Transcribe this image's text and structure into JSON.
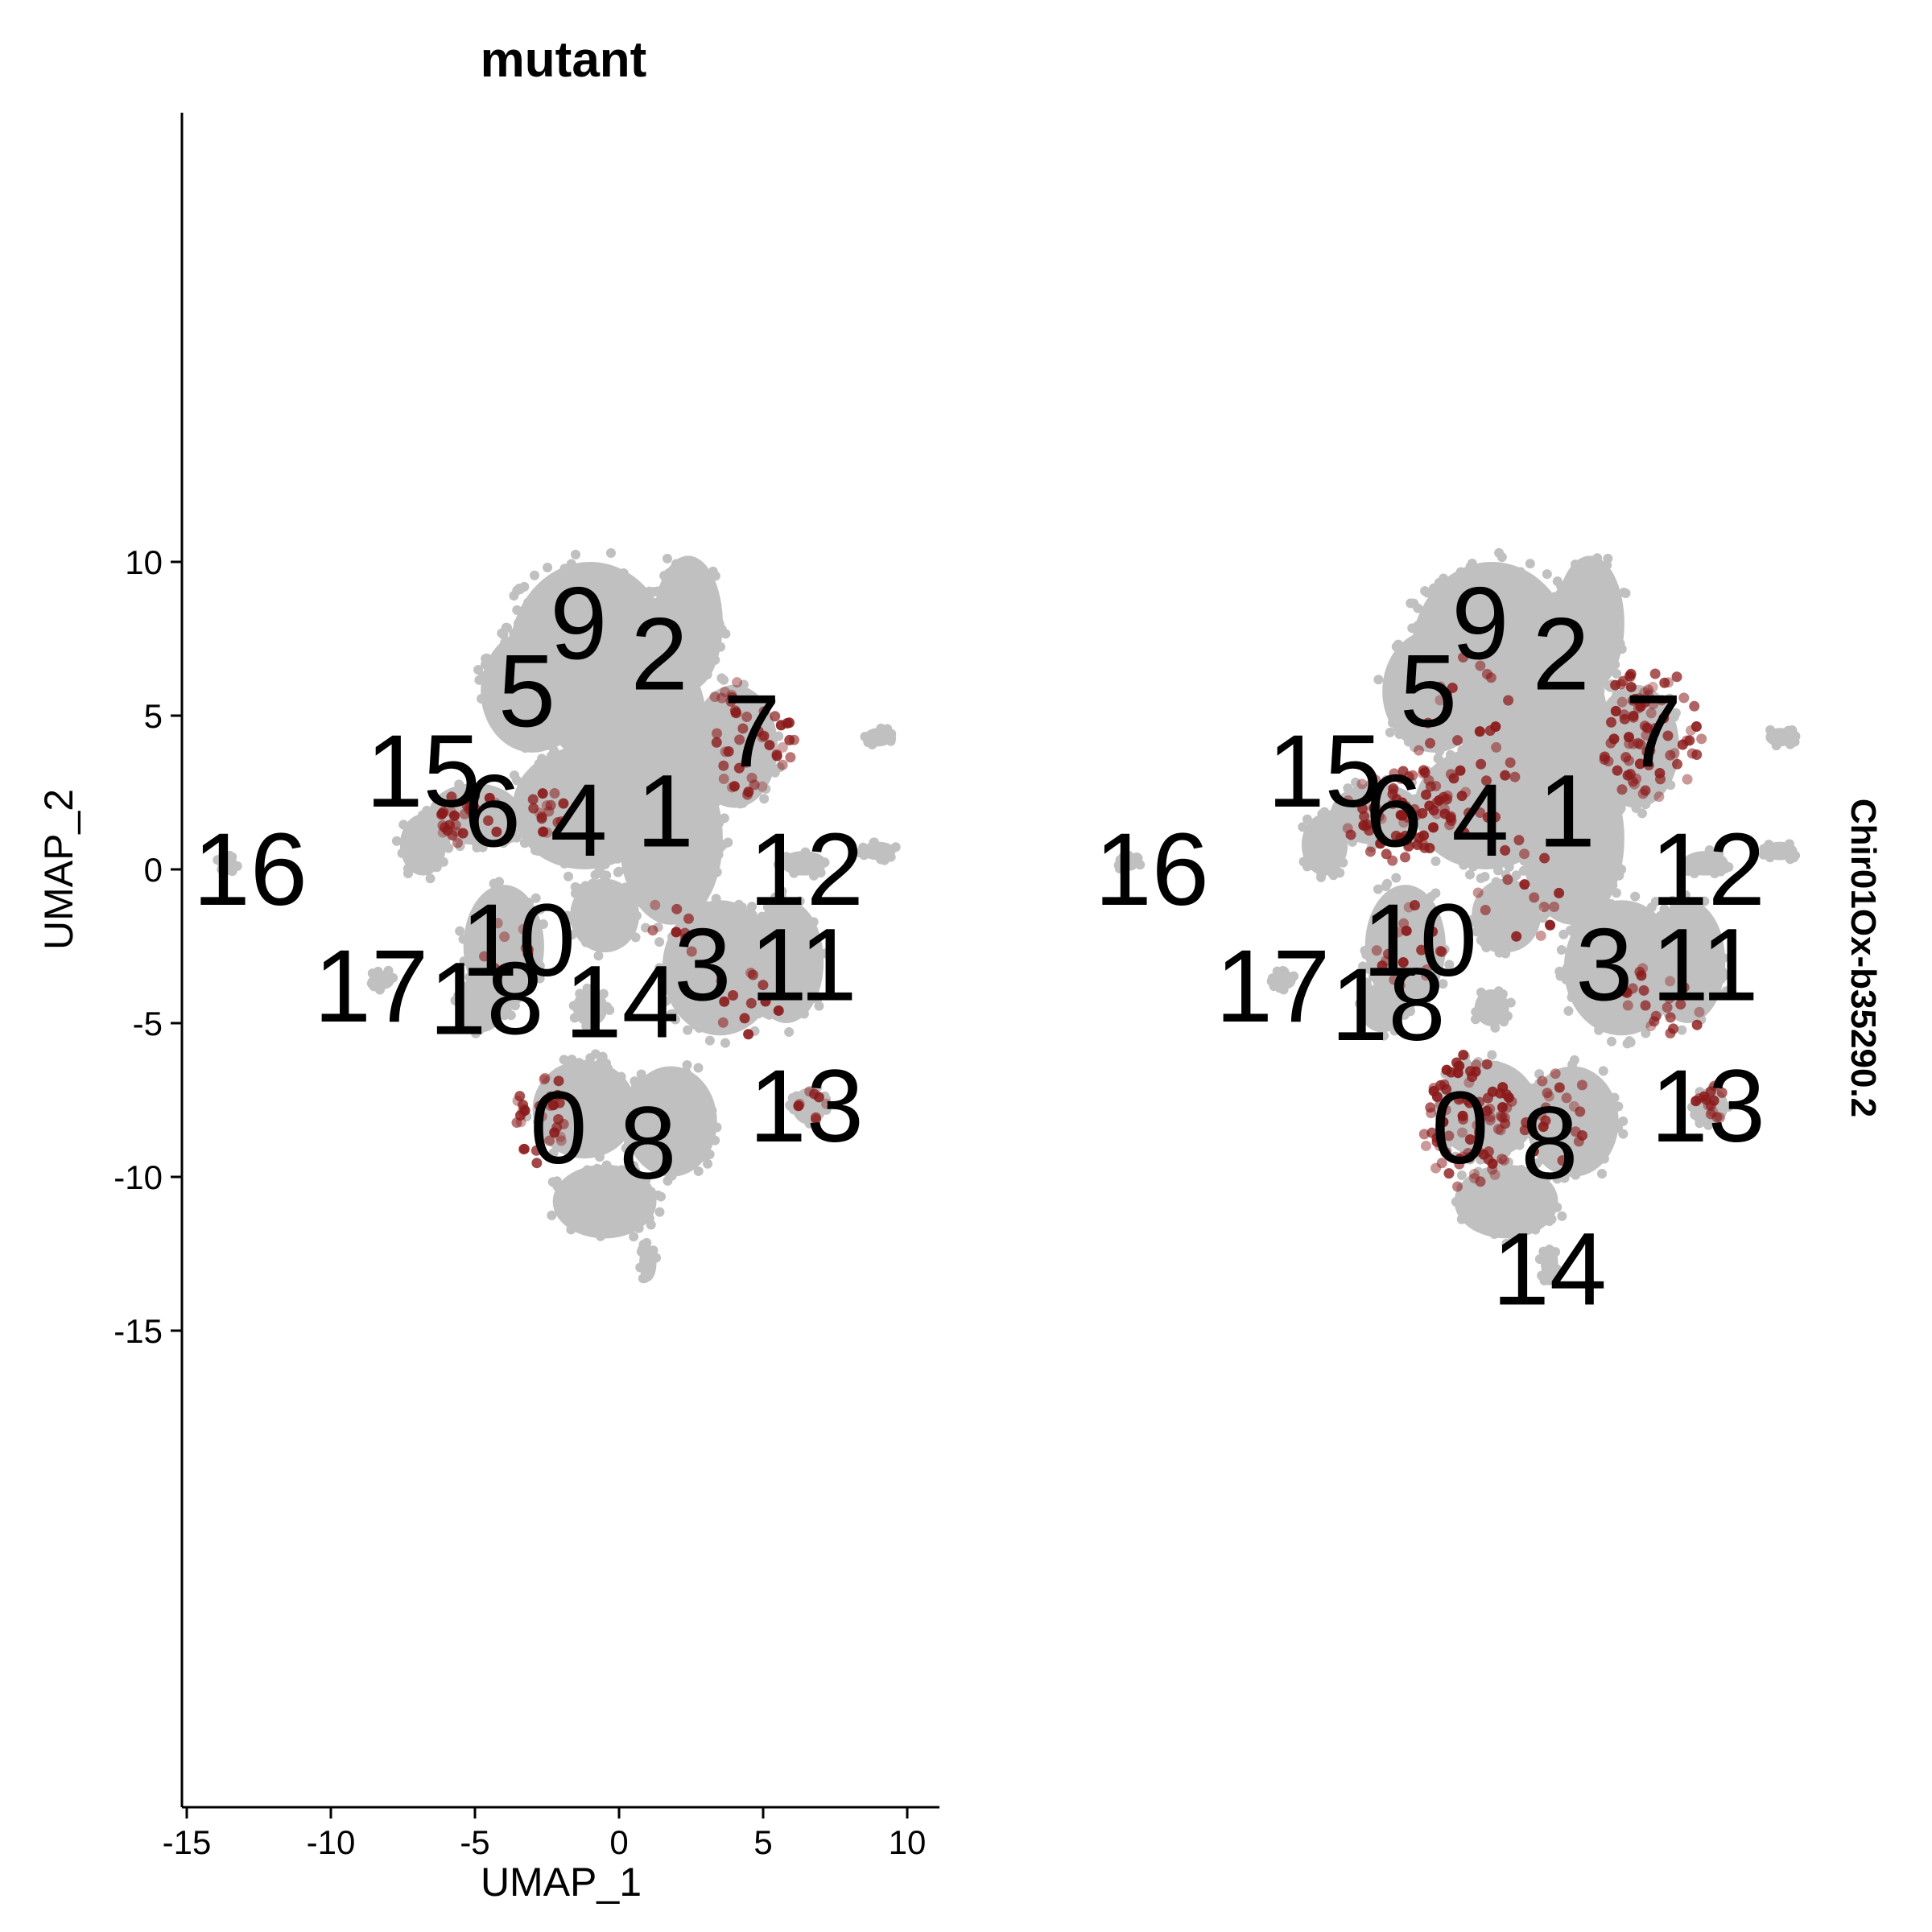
{
  "chart_data": [
    {
      "type": "scatter",
      "panel": "left",
      "title": "mutant",
      "xlabel": "UMAP_1",
      "ylabel": "UMAP_2",
      "xlim": [
        -15,
        11
      ],
      "ylim": [
        -15,
        12
      ],
      "x_ticks": [
        -15,
        -10,
        -5,
        0,
        5,
        10
      ],
      "y_ticks": [
        -15,
        -10,
        -5,
        0,
        5,
        10
      ],
      "grid": false,
      "base_color": "#c0c0c0",
      "expression_color": "#8b1a1a",
      "cluster_labels": [
        {
          "text": "9",
          "x": -1.4,
          "y": 8.0
        },
        {
          "text": "2",
          "x": 1.4,
          "y": 7.0
        },
        {
          "text": "5",
          "x": -3.2,
          "y": 5.8
        },
        {
          "text": "7",
          "x": 4.6,
          "y": 4.5
        },
        {
          "text": "15",
          "x": -6.8,
          "y": 3.2
        },
        {
          "text": "6",
          "x": -4.4,
          "y": 1.9
        },
        {
          "text": "4",
          "x": -1.4,
          "y": 1.6
        },
        {
          "text": "1",
          "x": 1.6,
          "y": 1.9
        },
        {
          "text": "16",
          "x": -12.8,
          "y": 0.0
        },
        {
          "text": "12",
          "x": 6.5,
          "y": 0.0
        },
        {
          "text": "10",
          "x": -3.5,
          "y": -2.3
        },
        {
          "text": "3",
          "x": 2.9,
          "y": -3.1
        },
        {
          "text": "11",
          "x": 6.4,
          "y": -3.1
        },
        {
          "text": "17",
          "x": -8.6,
          "y": -3.8
        },
        {
          "text": "18",
          "x": -4.6,
          "y": -4.2
        },
        {
          "text": "14",
          "x": 0.1,
          "y": -4.3
        },
        {
          "text": "13",
          "x": 6.5,
          "y": -7.7
        },
        {
          "text": "0",
          "x": -2.1,
          "y": -8.4
        },
        {
          "text": "8",
          "x": 1.0,
          "y": -8.9
        }
      ]
    },
    {
      "type": "scatter",
      "panel": "right",
      "title": "",
      "side_label": "Chir01Ox-b35290.2",
      "xlim": [
        -15,
        11
      ],
      "ylim": [
        -15,
        12
      ],
      "grid": false,
      "base_color": "#c0c0c0",
      "expression_color": "#8b1a1a",
      "cluster_labels": [
        {
          "text": "9",
          "x": -1.4,
          "y": 8.0
        },
        {
          "text": "2",
          "x": 1.4,
          "y": 7.0
        },
        {
          "text": "5",
          "x": -3.2,
          "y": 5.8
        },
        {
          "text": "7",
          "x": 4.6,
          "y": 4.5
        },
        {
          "text": "15",
          "x": -6.8,
          "y": 3.2
        },
        {
          "text": "6",
          "x": -4.4,
          "y": 1.9
        },
        {
          "text": "4",
          "x": -1.4,
          "y": 1.6
        },
        {
          "text": "1",
          "x": 1.6,
          "y": 1.9
        },
        {
          "text": "16",
          "x": -12.8,
          "y": 0.0
        },
        {
          "text": "12",
          "x": 6.5,
          "y": 0.0
        },
        {
          "text": "10",
          "x": -3.5,
          "y": -2.3
        },
        {
          "text": "3",
          "x": 2.9,
          "y": -3.1
        },
        {
          "text": "11",
          "x": 6.4,
          "y": -3.1
        },
        {
          "text": "17",
          "x": -8.6,
          "y": -3.8
        },
        {
          "text": "18",
          "x": -4.6,
          "y": -4.4
        },
        {
          "text": "14",
          "x": 1.0,
          "y": -13.0
        },
        {
          "text": "13",
          "x": 6.5,
          "y": -7.7
        },
        {
          "text": "0",
          "x": -2.1,
          "y": -8.4
        },
        {
          "text": "8",
          "x": 1.0,
          "y": -8.9
        }
      ]
    }
  ]
}
